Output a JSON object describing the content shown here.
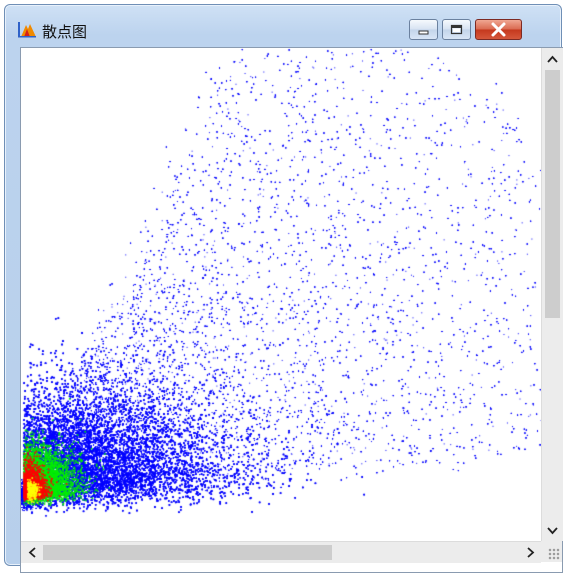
{
  "window": {
    "title": "散点图",
    "controls": {
      "minimize_icon": "minimize-icon",
      "maximize_icon": "maximize-icon",
      "close_icon": "close-icon"
    }
  },
  "colors": {
    "sparse": "#0000ff",
    "medium": "#00ee00",
    "dense": "#ff0000",
    "densest": "#ffff00",
    "title_bar": "#bcd3ee",
    "close_button": "#c5381d"
  },
  "scrollbars": {
    "vertical": {
      "up_icon": "chevron-up-icon",
      "down_icon": "chevron-down-icon"
    },
    "horizontal": {
      "left_icon": "chevron-left-icon",
      "right_icon": "chevron-right-icon"
    }
  }
}
